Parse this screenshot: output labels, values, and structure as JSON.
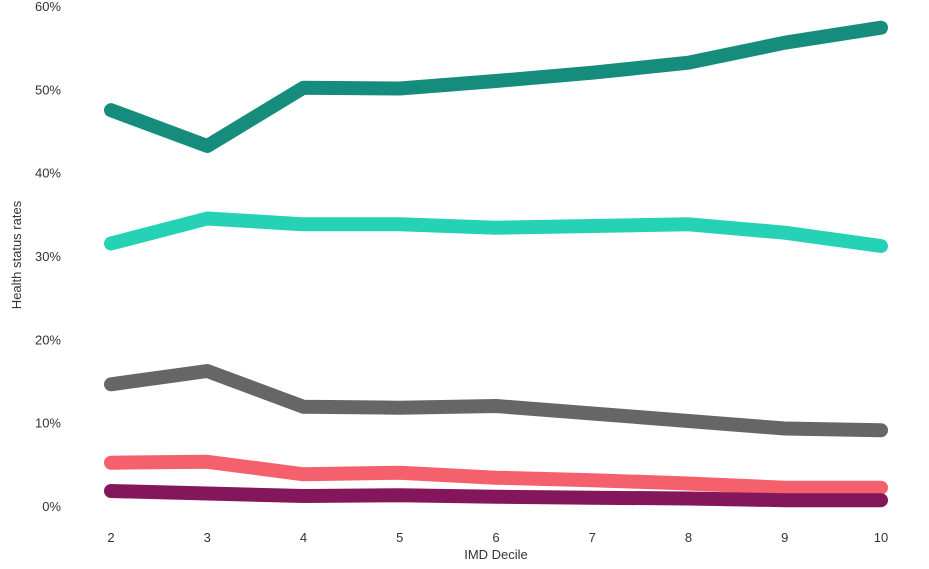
{
  "chart_data": {
    "type": "line",
    "xlabel": "IMD Decile",
    "ylabel": "Health status rates",
    "x": [
      2,
      3,
      4,
      5,
      6,
      7,
      8,
      9,
      10
    ],
    "x_tick_labels": [
      "2",
      "3",
      "4",
      "5",
      "6",
      "7",
      "8",
      "9",
      "10"
    ],
    "y_tick_labels": [
      "0%",
      "10%",
      "20%",
      "30%",
      "40%",
      "50%",
      "60%"
    ],
    "y_ticks": [
      0,
      10,
      20,
      30,
      40,
      50,
      60
    ],
    "ylim": [
      0,
      60
    ],
    "xlim": [
      2,
      10
    ],
    "grid": false,
    "legend": "none",
    "series": [
      {
        "color": "#158c7c",
        "values": [
          47.5,
          43.2,
          50.2,
          50.1,
          51.0,
          52.0,
          53.2,
          55.6,
          57.4
        ]
      },
      {
        "color": "#26d2b6",
        "values": [
          31.5,
          34.5,
          33.8,
          33.8,
          33.4,
          33.6,
          33.8,
          32.8,
          31.2
        ]
      },
      {
        "color": "#666666",
        "values": [
          14.6,
          16.2,
          11.9,
          11.8,
          12.0,
          11.1,
          10.2,
          9.3,
          9.1
        ]
      },
      {
        "color": "#f4606b",
        "values": [
          5.2,
          5.3,
          3.8,
          4.0,
          3.4,
          3.1,
          2.7,
          2.2,
          2.2
        ]
      },
      {
        "color": "#84175c",
        "values": [
          1.8,
          1.5,
          1.2,
          1.3,
          1.1,
          1.0,
          0.9,
          0.7,
          0.7
        ]
      }
    ]
  }
}
